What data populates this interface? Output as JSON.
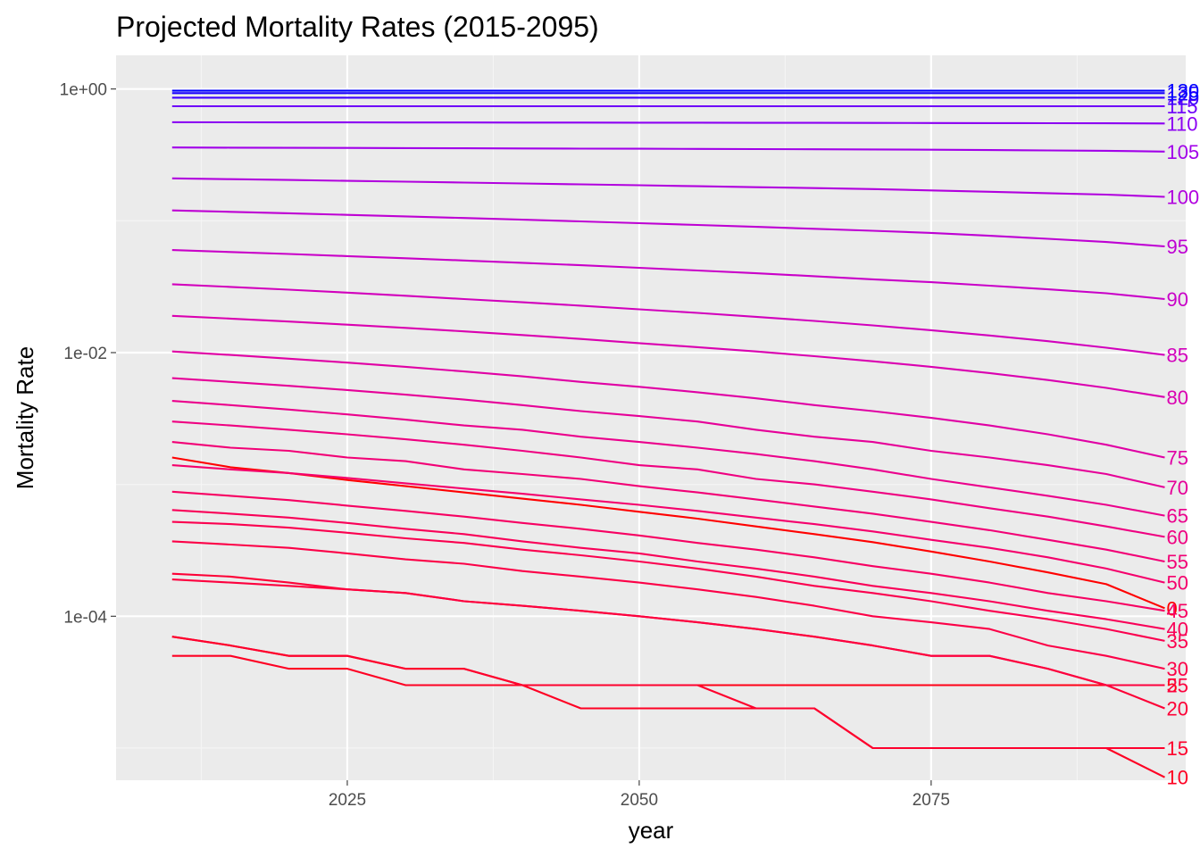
{
  "chart_data": {
    "type": "line",
    "title": "Projected Mortality Rates (2015-2095)",
    "xlabel": "year",
    "ylabel": "Mortality Rate",
    "x_scale": "linear",
    "y_scale": "log10",
    "xlim": [
      2005.2,
      2096.8
    ],
    "ylim": [
      5.7e-06,
      1.8
    ],
    "x_ticks": [
      2025,
      2050,
      2075
    ],
    "x_tick_labels": [
      "2025",
      "2050",
      "2075"
    ],
    "y_ticks": [
      1,
      0.01,
      0.0001
    ],
    "y_tick_labels": [
      "1e+00",
      "1e-02",
      "1e-04"
    ],
    "grid": true,
    "legend": "none (series labelled at line ends)",
    "x": [
      2010,
      2015,
      2020,
      2025,
      2030,
      2035,
      2040,
      2045,
      2050,
      2055,
      2060,
      2065,
      2070,
      2075,
      2080,
      2085,
      2090,
      2095
    ],
    "series": [
      {
        "name": "0",
        "color": "#FF0000",
        "values": [
          0.0016,
          0.00135,
          0.00122,
          0.00108,
          0.00097,
          0.00087,
          0.00078,
          0.0007,
          0.00062,
          0.00055,
          0.00048,
          0.00042,
          0.000365,
          0.00031,
          0.00026,
          0.000215,
          0.000175,
          0.000115
        ]
      },
      {
        "name": "5",
        "color": "#FF0017",
        "values": [
          7e-05,
          6e-05,
          5e-05,
          5e-05,
          4e-05,
          4e-05,
          3e-05,
          3e-05,
          3e-05,
          3e-05,
          3e-05,
          3e-05,
          3e-05,
          3e-05,
          3e-05,
          3e-05,
          3e-05,
          3e-05
        ]
      },
      {
        "name": "10",
        "color": "#FE0023",
        "values": [
          5e-05,
          5e-05,
          4e-05,
          4e-05,
          3e-05,
          3e-05,
          3e-05,
          2e-05,
          2e-05,
          2e-05,
          2e-05,
          2e-05,
          1e-05,
          1e-05,
          1e-05,
          1e-05,
          1e-05,
          6e-06
        ]
      },
      {
        "name": "15",
        "color": "#FE002D",
        "values": [
          7e-05,
          6e-05,
          5e-05,
          5e-05,
          4e-05,
          4e-05,
          3e-05,
          3e-05,
          3e-05,
          3e-05,
          2e-05,
          2e-05,
          1e-05,
          1e-05,
          1e-05,
          1e-05,
          1e-05,
          1e-05
        ]
      },
      {
        "name": "20",
        "color": "#FD0036",
        "values": [
          0.00021,
          0.0002,
          0.00018,
          0.00016,
          0.00015,
          0.00013,
          0.00012,
          0.00011,
          0.0001,
          9e-05,
          8e-05,
          7e-05,
          6e-05,
          5e-05,
          5e-05,
          4e-05,
          3e-05,
          2e-05
        ]
      },
      {
        "name": "25",
        "color": "#FD003E",
        "values": [
          0.00019,
          0.00018,
          0.00017,
          0.00016,
          0.00015,
          0.00013,
          0.00012,
          0.00011,
          0.0001,
          9e-05,
          8e-05,
          7e-05,
          6e-05,
          5e-05,
          5e-05,
          4e-05,
          3e-05,
          3e-05
        ]
      },
      {
        "name": "30",
        "color": "#FC0047",
        "values": [
          0.00037,
          0.00035,
          0.00033,
          0.0003,
          0.00027,
          0.00025,
          0.00022,
          0.0002,
          0.00018,
          0.00016,
          0.00014,
          0.00012,
          0.0001,
          9e-05,
          8e-05,
          6e-05,
          5e-05,
          4e-05
        ]
      },
      {
        "name": "35",
        "color": "#FB004F",
        "values": [
          0.00052,
          0.0005,
          0.00047,
          0.00043,
          0.00039,
          0.00036,
          0.00032,
          0.00029,
          0.00026,
          0.00023,
          0.0002,
          0.00017,
          0.00015,
          0.00013,
          0.00011,
          9.5e-05,
          8e-05,
          6.5e-05
        ]
      },
      {
        "name": "40",
        "color": "#F90058",
        "values": [
          0.00064,
          0.0006,
          0.00056,
          0.00051,
          0.00046,
          0.00042,
          0.00037,
          0.00033,
          0.0003,
          0.00026,
          0.00023,
          0.0002,
          0.00017,
          0.00015,
          0.00013,
          0.00011,
          9.5e-05,
          8e-05
        ]
      },
      {
        "name": "45",
        "color": "#F70062",
        "values": [
          0.00088,
          0.00082,
          0.00076,
          0.00069,
          0.00063,
          0.00057,
          0.00051,
          0.00046,
          0.00041,
          0.00036,
          0.00032,
          0.00028,
          0.00024,
          0.00021,
          0.00018,
          0.00015,
          0.00013,
          0.00011
        ]
      },
      {
        "name": "50",
        "color": "#F5006C",
        "values": [
          0.0014,
          0.0013,
          0.00122,
          0.00112,
          0.00102,
          0.00093,
          0.00085,
          0.00077,
          0.0007,
          0.00063,
          0.00056,
          0.0005,
          0.00044,
          0.00038,
          0.00033,
          0.00028,
          0.00023,
          0.00018
        ]
      },
      {
        "name": "55",
        "color": "#F20076",
        "values": [
          0.0021,
          0.0019,
          0.0018,
          0.0016,
          0.0015,
          0.0013,
          0.0012,
          0.0011,
          0.00097,
          0.00087,
          0.00077,
          0.00068,
          0.0006,
          0.00052,
          0.00045,
          0.00038,
          0.00032,
          0.00026
        ]
      },
      {
        "name": "60",
        "color": "#EF0081",
        "values": [
          0.003,
          0.0028,
          0.0026,
          0.0024,
          0.0022,
          0.002,
          0.0018,
          0.0016,
          0.0014,
          0.0013,
          0.0011,
          0.001,
          0.00088,
          0.00077,
          0.00066,
          0.00057,
          0.00048,
          0.0004
        ]
      },
      {
        "name": "65",
        "color": "#EB008C",
        "values": [
          0.0043,
          0.004,
          0.0037,
          0.0034,
          0.0031,
          0.0028,
          0.0026,
          0.0023,
          0.0021,
          0.0019,
          0.0017,
          0.0015,
          0.0013,
          0.0011,
          0.00095,
          0.00082,
          0.0007,
          0.00058
        ]
      },
      {
        "name": "70",
        "color": "#E60098",
        "values": [
          0.0064,
          0.006,
          0.0056,
          0.0052,
          0.0048,
          0.0044,
          0.004,
          0.0036,
          0.0033,
          0.003,
          0.0026,
          0.0023,
          0.0021,
          0.0018,
          0.0016,
          0.0014,
          0.0012,
          0.00095
        ]
      },
      {
        "name": "75",
        "color": "#E000A4",
        "values": [
          0.0102,
          0.0096,
          0.009,
          0.0084,
          0.0078,
          0.0072,
          0.0066,
          0.006,
          0.0055,
          0.005,
          0.0045,
          0.004,
          0.0036,
          0.0032,
          0.0028,
          0.0024,
          0.002,
          0.0016
        ]
      },
      {
        "name": "80",
        "color": "#DA00B0",
        "values": [
          0.019,
          0.0181,
          0.0172,
          0.0163,
          0.0154,
          0.0145,
          0.0136,
          0.0127,
          0.0118,
          0.011,
          0.0102,
          0.0094,
          0.0086,
          0.0078,
          0.007,
          0.0062,
          0.0054,
          0.0046
        ]
      },
      {
        "name": "85",
        "color": "#D200BC",
        "values": [
          0.033,
          0.0315,
          0.03,
          0.0285,
          0.027,
          0.0255,
          0.0241,
          0.0227,
          0.0213,
          0.02,
          0.0187,
          0.0174,
          0.0161,
          0.0148,
          0.0135,
          0.0122,
          0.0109,
          0.0096
        ]
      },
      {
        "name": "90",
        "color": "#C900C8",
        "values": [
          0.06,
          0.058,
          0.056,
          0.054,
          0.052,
          0.05,
          0.048,
          0.046,
          0.044,
          0.042,
          0.04,
          0.038,
          0.036,
          0.0342,
          0.0322,
          0.0302,
          0.0282,
          0.0255
        ]
      },
      {
        "name": "95",
        "color": "#BE00D3",
        "values": [
          0.12,
          0.117,
          0.114,
          0.111,
          0.108,
          0.105,
          0.102,
          0.099,
          0.096,
          0.093,
          0.09,
          0.087,
          0.084,
          0.081,
          0.077,
          0.073,
          0.069,
          0.064
        ]
      },
      {
        "name": "100",
        "color": "#B100DE",
        "values": [
          0.21,
          0.207,
          0.204,
          0.201,
          0.198,
          0.195,
          0.192,
          0.189,
          0.186,
          0.183,
          0.18,
          0.177,
          0.174,
          0.17,
          0.166,
          0.162,
          0.158,
          0.152
        ]
      },
      {
        "name": "105",
        "color": "#A100E9",
        "values": [
          0.36,
          0.359,
          0.358,
          0.357,
          0.356,
          0.355,
          0.354,
          0.353,
          0.352,
          0.351,
          0.35,
          0.349,
          0.348,
          0.346,
          0.344,
          0.342,
          0.34,
          0.335
        ]
      },
      {
        "name": "110",
        "color": "#8C00F2",
        "values": [
          0.56,
          0.559,
          0.558,
          0.558,
          0.557,
          0.557,
          0.556,
          0.556,
          0.555,
          0.555,
          0.554,
          0.554,
          0.553,
          0.552,
          0.551,
          0.55,
          0.549,
          0.548
        ]
      },
      {
        "name": "115",
        "color": "#6E00F9",
        "values": [
          0.74,
          0.74,
          0.74,
          0.74,
          0.74,
          0.74,
          0.74,
          0.74,
          0.74,
          0.74,
          0.74,
          0.74,
          0.74,
          0.74,
          0.74,
          0.74,
          0.74,
          0.74
        ]
      },
      {
        "name": "120",
        "color": "#3E00FD",
        "values": [
          0.86,
          0.86,
          0.86,
          0.86,
          0.86,
          0.86,
          0.86,
          0.86,
          0.86,
          0.86,
          0.86,
          0.86,
          0.86,
          0.86,
          0.86,
          0.86,
          0.86,
          0.86
        ]
      },
      {
        "name": "125",
        "color": "#1800FF",
        "values": [
          0.93,
          0.93,
          0.93,
          0.93,
          0.93,
          0.93,
          0.93,
          0.93,
          0.93,
          0.93,
          0.93,
          0.93,
          0.93,
          0.93,
          0.93,
          0.93,
          0.93,
          0.93
        ]
      },
      {
        "name": "130",
        "color": "#0000FF",
        "values": [
          0.97,
          0.97,
          0.97,
          0.97,
          0.97,
          0.97,
          0.97,
          0.97,
          0.97,
          0.97,
          0.97,
          0.97,
          0.97,
          0.97,
          0.97,
          0.97,
          0.97,
          0.97
        ]
      }
    ],
    "colors": {
      "panel_background": "#EBEBEB",
      "grid_major": "#FFFFFF",
      "grid_minor": "#F5F5F5",
      "tick": "#333333",
      "tick_text": "#4D4D4D"
    }
  }
}
